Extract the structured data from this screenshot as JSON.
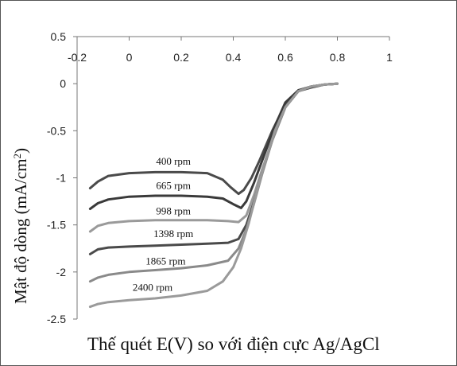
{
  "chart_data": {
    "type": "line",
    "xlabel": "Thế quét E(V) so với điện cực Ag/AgCl",
    "ylabel_main": "Mật độ dòng (mA/cm",
    "ylabel_sup": "2",
    "ylabel_close": ")",
    "xlim": [
      -0.2,
      1.0
    ],
    "ylim": [
      -2.5,
      0.5
    ],
    "x_ticks": [
      -0.2,
      0,
      0.2,
      0.4,
      0.6,
      0.8,
      1
    ],
    "x_tick_labels": [
      "-0.2",
      "0",
      "0.2",
      "0.4",
      "0.6",
      "0.8",
      "1"
    ],
    "y_ticks": [
      0.5,
      0,
      -0.5,
      -1,
      -1.5,
      -2,
      -2.5
    ],
    "y_tick_labels": [
      "0.5",
      "0",
      "-0.5",
      "-1",
      "-1.5",
      "-2",
      "-2.5"
    ],
    "x_axis_position": "top",
    "grid": false,
    "series": [
      {
        "name": "400 rpm",
        "color": "#4a4a4a",
        "x": [
          -0.15,
          -0.12,
          -0.08,
          0.0,
          0.1,
          0.2,
          0.3,
          0.36,
          0.39,
          0.42,
          0.44,
          0.47,
          0.5,
          0.55,
          0.6,
          0.65,
          0.7,
          0.75,
          0.8
        ],
        "y": [
          -1.11,
          -1.04,
          -0.98,
          -0.95,
          -0.94,
          -0.94,
          -0.95,
          -1.02,
          -1.1,
          -1.17,
          -1.13,
          -1.0,
          -0.82,
          -0.5,
          -0.22,
          -0.08,
          -0.04,
          -0.01,
          0.0
        ]
      },
      {
        "name": "665 rpm",
        "color": "#3a3a3a",
        "x": [
          -0.15,
          -0.12,
          -0.08,
          0.0,
          0.1,
          0.2,
          0.3,
          0.36,
          0.4,
          0.43,
          0.45,
          0.48,
          0.52,
          0.56,
          0.6,
          0.65,
          0.7,
          0.75,
          0.8
        ],
        "y": [
          -1.33,
          -1.27,
          -1.23,
          -1.2,
          -1.19,
          -1.19,
          -1.2,
          -1.22,
          -1.28,
          -1.32,
          -1.25,
          -1.05,
          -0.75,
          -0.45,
          -0.2,
          -0.07,
          -0.03,
          -0.01,
          0.0
        ]
      },
      {
        "name": "998 rpm",
        "color": "#9a9a9a",
        "x": [
          -0.15,
          -0.12,
          -0.08,
          0.0,
          0.1,
          0.2,
          0.3,
          0.38,
          0.42,
          0.45,
          0.48,
          0.51,
          0.55,
          0.6,
          0.65,
          0.7,
          0.75,
          0.8
        ],
        "y": [
          -1.57,
          -1.51,
          -1.48,
          -1.46,
          -1.45,
          -1.45,
          -1.45,
          -1.46,
          -1.47,
          -1.4,
          -1.18,
          -0.92,
          -0.6,
          -0.25,
          -0.08,
          -0.03,
          -0.01,
          0.0
        ]
      },
      {
        "name": "1398 rpm",
        "color": "#4a4a4a",
        "x": [
          -0.15,
          -0.12,
          -0.08,
          0.0,
          0.1,
          0.2,
          0.3,
          0.38,
          0.42,
          0.45,
          0.48,
          0.51,
          0.55,
          0.6,
          0.65,
          0.7,
          0.75,
          0.8
        ],
        "y": [
          -1.81,
          -1.76,
          -1.74,
          -1.73,
          -1.72,
          -1.71,
          -1.7,
          -1.69,
          -1.65,
          -1.5,
          -1.25,
          -0.95,
          -0.6,
          -0.25,
          -0.08,
          -0.03,
          -0.01,
          0.0
        ]
      },
      {
        "name": "1865 rpm",
        "color": "#8a8a8a",
        "x": [
          -0.15,
          -0.12,
          -0.08,
          0.0,
          0.1,
          0.2,
          0.3,
          0.38,
          0.42,
          0.45,
          0.48,
          0.51,
          0.55,
          0.6,
          0.65,
          0.7,
          0.75,
          0.8
        ],
        "y": [
          -2.1,
          -2.06,
          -2.03,
          -2.0,
          -1.98,
          -1.96,
          -1.93,
          -1.88,
          -1.75,
          -1.55,
          -1.27,
          -0.97,
          -0.6,
          -0.25,
          -0.08,
          -0.03,
          -0.01,
          0.0
        ]
      },
      {
        "name": "2400 rpm",
        "color": "#9a9a9a",
        "x": [
          -0.15,
          -0.12,
          -0.08,
          0.0,
          0.1,
          0.2,
          0.3,
          0.36,
          0.4,
          0.43,
          0.46,
          0.49,
          0.52,
          0.56,
          0.6,
          0.65,
          0.7,
          0.75,
          0.8
        ],
        "y": [
          -2.37,
          -2.34,
          -2.32,
          -2.3,
          -2.28,
          -2.25,
          -2.2,
          -2.1,
          -1.95,
          -1.75,
          -1.48,
          -1.15,
          -0.85,
          -0.5,
          -0.25,
          -0.08,
          -0.03,
          -0.01,
          0.0
        ]
      }
    ],
    "labels": [
      {
        "text": "400 rpm",
        "x": 0.17,
        "y": -0.86
      },
      {
        "text": "665 rpm",
        "x": 0.17,
        "y": -1.12
      },
      {
        "text": "998 rpm",
        "x": 0.17,
        "y": -1.39
      },
      {
        "text": "1398 rpm",
        "x": 0.17,
        "y": -1.63
      },
      {
        "text": "1865 rpm",
        "x": 0.14,
        "y": -1.92
      },
      {
        "text": "2400 rpm",
        "x": 0.09,
        "y": -2.2
      }
    ]
  }
}
